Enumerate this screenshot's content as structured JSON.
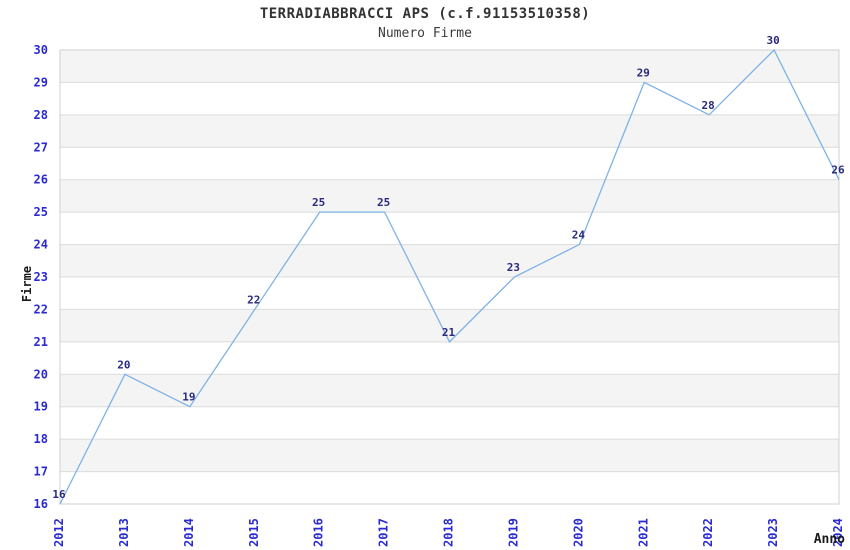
{
  "chart_data": {
    "type": "line",
    "title": "TERRADIABBRACCI APS (c.f.91153510358)",
    "subtitle": "Numero Firme",
    "xlabel": "Anno",
    "ylabel": "Firme",
    "categories": [
      "2012",
      "2013",
      "2014",
      "2015",
      "2016",
      "2017",
      "2018",
      "2019",
      "2020",
      "2021",
      "2022",
      "2023",
      "2024"
    ],
    "values": [
      16,
      20,
      19,
      22,
      25,
      25,
      21,
      23,
      24,
      29,
      28,
      30,
      26
    ],
    "ylim": [
      16,
      30
    ],
    "ytick_step": 1,
    "yticks": [
      16,
      17,
      18,
      19,
      20,
      21,
      22,
      23,
      24,
      25,
      26,
      27,
      28,
      29,
      30
    ],
    "grid": "horizontal-only",
    "plot_bands": "alternating-horizontal",
    "legend": "none",
    "point_labels_visible": true,
    "colors": {
      "line": "#7fb2e5",
      "tick_label": "#2a2ad2",
      "data_label": "#2a2a7e",
      "band_fill": "#f4f4f4",
      "gridline": "#dcdcdc",
      "plot_border": "#d0d0d0",
      "title": "#333333"
    }
  }
}
